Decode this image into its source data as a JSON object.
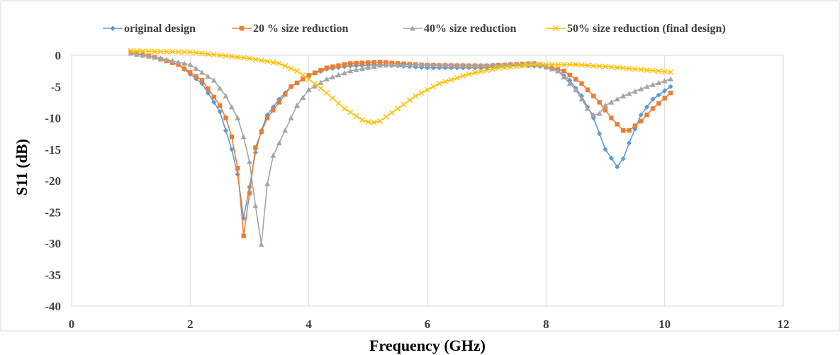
{
  "chart_data": {
    "type": "line",
    "title": "",
    "xlabel": "Frequency (GHz)",
    "ylabel": "S11 (dB)",
    "xlim": [
      0,
      12
    ],
    "ylim": [
      -40,
      0
    ],
    "x_ticks": [
      "0",
      "2",
      "4",
      "6",
      "8",
      "10",
      "12"
    ],
    "y_ticks": [
      "0",
      "-5",
      "-10",
      "-15",
      "-20",
      "-25",
      "-30",
      "-35",
      "-40"
    ],
    "grid": "vertical",
    "legend_position": "top",
    "x_sampling": {
      "start": 1.0,
      "end": 10.1,
      "step": 0.1
    },
    "series": [
      {
        "name": "original design",
        "color": "#5B9BD5",
        "marker": "diamond",
        "keypoints": [
          [
            1.0,
            0.4
          ],
          [
            1.4,
            -0.3
          ],
          [
            1.8,
            -1.5
          ],
          [
            2.2,
            -4.5
          ],
          [
            2.5,
            -9
          ],
          [
            2.7,
            -15
          ],
          [
            2.8,
            -19
          ],
          [
            2.9,
            -26
          ],
          [
            3.0,
            -21
          ],
          [
            3.1,
            -15.5
          ],
          [
            3.2,
            -12
          ],
          [
            3.3,
            -9.5
          ],
          [
            3.5,
            -7
          ],
          [
            3.7,
            -5
          ],
          [
            4.0,
            -3.2
          ],
          [
            4.3,
            -2.2
          ],
          [
            4.7,
            -1.7
          ],
          [
            5.2,
            -1.5
          ],
          [
            6.0,
            -2
          ],
          [
            7.0,
            -2
          ],
          [
            7.5,
            -1.6
          ],
          [
            8.0,
            -1.8
          ],
          [
            8.2,
            -2.5
          ],
          [
            8.4,
            -4
          ],
          [
            8.6,
            -6.5
          ],
          [
            8.8,
            -10
          ],
          [
            9.0,
            -15
          ],
          [
            9.2,
            -17.8
          ],
          [
            9.3,
            -16.5
          ],
          [
            9.4,
            -14
          ],
          [
            9.6,
            -9.5
          ],
          [
            9.8,
            -7
          ],
          [
            10.1,
            -5
          ]
        ]
      },
      {
        "name": "20 % size reduction",
        "color": "#ED7D31",
        "marker": "square",
        "keypoints": [
          [
            1.0,
            0.5
          ],
          [
            1.4,
            -0.3
          ],
          [
            1.8,
            -1.5
          ],
          [
            2.2,
            -4
          ],
          [
            2.5,
            -8
          ],
          [
            2.6,
            -10
          ],
          [
            2.7,
            -13
          ],
          [
            2.8,
            -18
          ],
          [
            2.9,
            -28.8
          ],
          [
            3.0,
            -22
          ],
          [
            3.05,
            -16
          ],
          [
            3.2,
            -12.2
          ],
          [
            3.3,
            -10
          ],
          [
            3.5,
            -7.5
          ],
          [
            3.7,
            -5
          ],
          [
            4.0,
            -3.2
          ],
          [
            4.3,
            -2
          ],
          [
            4.7,
            -1.3
          ],
          [
            5.2,
            -1.1
          ],
          [
            6.0,
            -1.6
          ],
          [
            7.0,
            -1.7
          ],
          [
            7.8,
            -1.3
          ],
          [
            8.3,
            -2.5
          ],
          [
            8.6,
            -4.5
          ],
          [
            8.9,
            -7.5
          ],
          [
            9.1,
            -10
          ],
          [
            9.3,
            -12
          ],
          [
            9.4,
            -12
          ],
          [
            9.6,
            -10.5
          ],
          [
            9.8,
            -8.5
          ],
          [
            10.1,
            -6
          ]
        ]
      },
      {
        "name": "40% size reduction",
        "color": "#A5A5A5",
        "marker": "triangle",
        "keypoints": [
          [
            1.0,
            0.3
          ],
          [
            1.5,
            -0.5
          ],
          [
            2.0,
            -1.5
          ],
          [
            2.4,
            -4
          ],
          [
            2.6,
            -6.5
          ],
          [
            2.8,
            -10
          ],
          [
            2.9,
            -13
          ],
          [
            3.0,
            -17
          ],
          [
            3.1,
            -24
          ],
          [
            3.17,
            -33.3
          ],
          [
            3.25,
            -25
          ],
          [
            3.3,
            -20.5
          ],
          [
            3.4,
            -16
          ],
          [
            3.6,
            -12
          ],
          [
            3.8,
            -8
          ],
          [
            4.0,
            -5.5
          ],
          [
            4.3,
            -3.8
          ],
          [
            4.7,
            -2.5
          ],
          [
            5.2,
            -1.6
          ],
          [
            6.0,
            -1.5
          ],
          [
            7.0,
            -1.6
          ],
          [
            7.8,
            -1.3
          ],
          [
            8.2,
            -2.5
          ],
          [
            8.5,
            -5.5
          ],
          [
            8.7,
            -8.5
          ],
          [
            8.8,
            -9.5
          ],
          [
            8.9,
            -9.3
          ],
          [
            9.0,
            -8
          ],
          [
            9.3,
            -6.5
          ],
          [
            9.7,
            -5
          ],
          [
            10.1,
            -3.8
          ]
        ]
      },
      {
        "name": "50% size reduction (final design)",
        "color": "#FFC000",
        "marker": "x",
        "keypoints": [
          [
            1.0,
            0.7
          ],
          [
            1.5,
            0.6
          ],
          [
            2.0,
            0.5
          ],
          [
            2.5,
            0
          ],
          [
            3.0,
            -0.5
          ],
          [
            3.5,
            -1.3
          ],
          [
            3.8,
            -2.5
          ],
          [
            4.0,
            -3.8
          ],
          [
            4.3,
            -6
          ],
          [
            4.6,
            -8.5
          ],
          [
            4.9,
            -10.3
          ],
          [
            5.05,
            -10.8
          ],
          [
            5.2,
            -10.5
          ],
          [
            5.5,
            -8.5
          ],
          [
            5.8,
            -6.5
          ],
          [
            6.2,
            -4.5
          ],
          [
            6.7,
            -3
          ],
          [
            7.2,
            -2
          ],
          [
            7.8,
            -1.5
          ],
          [
            8.5,
            -1.5
          ],
          [
            9.0,
            -1.8
          ],
          [
            9.5,
            -2.2
          ],
          [
            10.1,
            -2.7
          ]
        ]
      }
    ]
  }
}
